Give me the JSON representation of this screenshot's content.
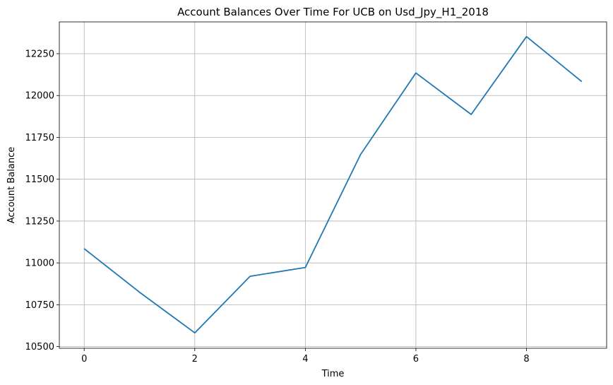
{
  "chart_data": {
    "type": "line",
    "title": "Account Balances Over Time For UCB on Usd_Jpy_H1_2018",
    "xlabel": "Time",
    "ylabel": "Account Balance",
    "xlim": [
      -0.45,
      9.45
    ],
    "ylim": [
      10490,
      12440
    ],
    "xticks": [
      0,
      2,
      4,
      6,
      8
    ],
    "yticks": [
      10500,
      10750,
      11000,
      11250,
      11500,
      11750,
      12000,
      12250
    ],
    "grid": true,
    "series": [
      {
        "color": "#1f77b4",
        "x": [
          0,
          1,
          2,
          3,
          4,
          5,
          6,
          7,
          8,
          9
        ],
        "y": [
          11085,
          10825,
          10582,
          10920,
          10973,
          11648,
          12135,
          11887,
          12352,
          12083
        ]
      }
    ]
  }
}
